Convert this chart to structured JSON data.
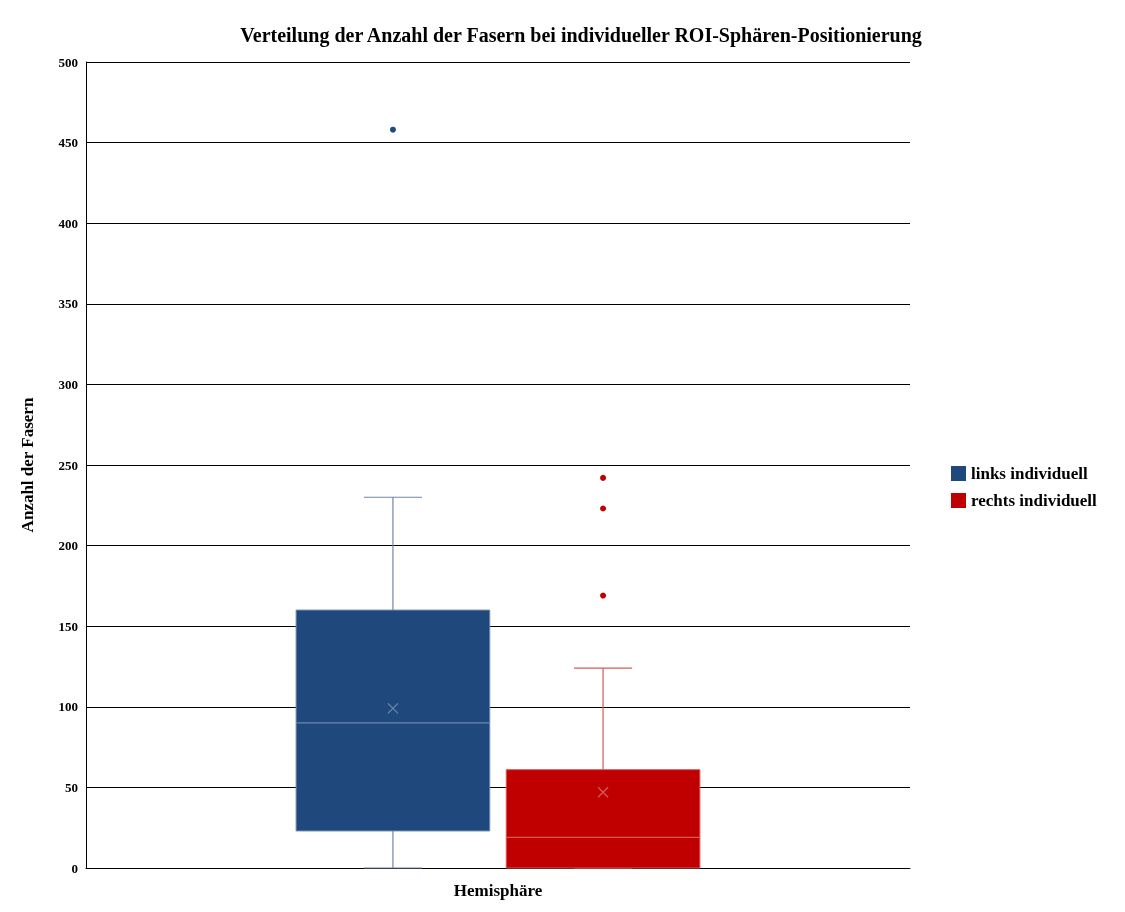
{
  "chart_data": {
    "type": "box",
    "title": "Verteilung der Anzahl der Fasern bei individueller ROI-Sphären-Positionierung",
    "xlabel": "Hemisphäre",
    "ylabel": "Anzahl der Fasern",
    "categories": [
      null
    ],
    "series": [
      {
        "name": "links individuell",
        "color": "#1f497d",
        "boxes": [
          {
            "low": 0,
            "q1": 23,
            "median": 90,
            "q3": 160,
            "high": 230,
            "mean": 99,
            "outliers": [
              458
            ]
          }
        ]
      },
      {
        "name": "rechts individuell",
        "color": "#c00000",
        "boxes": [
          {
            "low": 0,
            "q1": 0,
            "median": 19,
            "q3": 61,
            "high": 124,
            "mean": 47,
            "outliers": [
              169,
              223,
              242
            ]
          }
        ]
      }
    ],
    "ylim": [
      0,
      500
    ],
    "yticks": [
      0,
      50,
      100,
      150,
      200,
      250,
      300,
      350,
      400,
      450,
      500
    ],
    "grid": "y",
    "legend": "right"
  }
}
